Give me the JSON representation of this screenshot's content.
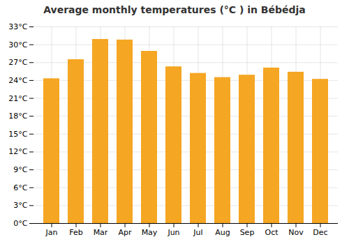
{
  "chart_data": {
    "type": "bar",
    "title": "Average monthly temperatures (°C ) in Bébédja",
    "categories": [
      "Jan",
      "Feb",
      "Mar",
      "Apr",
      "May",
      "Jun",
      "Jul",
      "Aug",
      "Sep",
      "Oct",
      "Nov",
      "Dec"
    ],
    "values": [
      24.3,
      27.5,
      30.9,
      30.8,
      28.9,
      26.3,
      25.2,
      24.5,
      24.9,
      26.1,
      25.4,
      24.2
    ],
    "color": "#F5A623",
    "ylim": [
      0,
      33
    ],
    "yticks": [
      {
        "value": 0,
        "label": "0°C"
      },
      {
        "value": 3,
        "label": "3°C"
      },
      {
        "value": 6,
        "label": "6°C"
      },
      {
        "value": 9,
        "label": "9°C"
      },
      {
        "value": 12,
        "label": "12°C"
      },
      {
        "value": 15,
        "label": "15°C"
      },
      {
        "value": 18,
        "label": "18°C"
      },
      {
        "value": 21,
        "label": "21°C"
      },
      {
        "value": 24,
        "label": "24°C"
      },
      {
        "value": 27,
        "label": "27°C"
      },
      {
        "value": 30,
        "label": "30°C"
      },
      {
        "value": 33,
        "label": "33°C"
      }
    ],
    "grid": true
  }
}
